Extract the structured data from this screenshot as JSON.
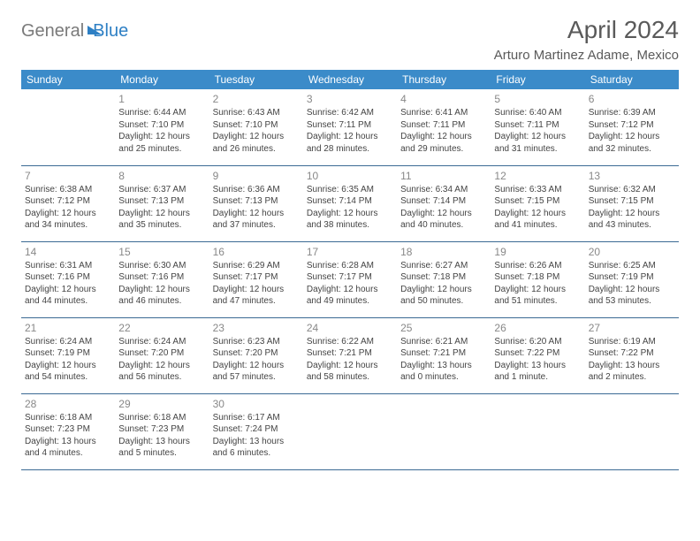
{
  "brand": {
    "word1": "General",
    "word2": "Blue"
  },
  "title": "April 2024",
  "location": "Arturo Martinez Adame, Mexico",
  "colors": {
    "header_bg": "#3b8bc9",
    "header_text": "#ffffff",
    "cell_border": "#3b6a94",
    "daynum": "#888888",
    "body_text": "#444444",
    "logo_gray": "#7a7a7a",
    "logo_blue": "#2d7fc4"
  },
  "weekdays": [
    "Sunday",
    "Monday",
    "Tuesday",
    "Wednesday",
    "Thursday",
    "Friday",
    "Saturday"
  ],
  "weeks": [
    [
      null,
      {
        "day": "1",
        "sunrise": "Sunrise: 6:44 AM",
        "sunset": "Sunset: 7:10 PM",
        "dl1": "Daylight: 12 hours",
        "dl2": "and 25 minutes."
      },
      {
        "day": "2",
        "sunrise": "Sunrise: 6:43 AM",
        "sunset": "Sunset: 7:10 PM",
        "dl1": "Daylight: 12 hours",
        "dl2": "and 26 minutes."
      },
      {
        "day": "3",
        "sunrise": "Sunrise: 6:42 AM",
        "sunset": "Sunset: 7:11 PM",
        "dl1": "Daylight: 12 hours",
        "dl2": "and 28 minutes."
      },
      {
        "day": "4",
        "sunrise": "Sunrise: 6:41 AM",
        "sunset": "Sunset: 7:11 PM",
        "dl1": "Daylight: 12 hours",
        "dl2": "and 29 minutes."
      },
      {
        "day": "5",
        "sunrise": "Sunrise: 6:40 AM",
        "sunset": "Sunset: 7:11 PM",
        "dl1": "Daylight: 12 hours",
        "dl2": "and 31 minutes."
      },
      {
        "day": "6",
        "sunrise": "Sunrise: 6:39 AM",
        "sunset": "Sunset: 7:12 PM",
        "dl1": "Daylight: 12 hours",
        "dl2": "and 32 minutes."
      }
    ],
    [
      {
        "day": "7",
        "sunrise": "Sunrise: 6:38 AM",
        "sunset": "Sunset: 7:12 PM",
        "dl1": "Daylight: 12 hours",
        "dl2": "and 34 minutes."
      },
      {
        "day": "8",
        "sunrise": "Sunrise: 6:37 AM",
        "sunset": "Sunset: 7:13 PM",
        "dl1": "Daylight: 12 hours",
        "dl2": "and 35 minutes."
      },
      {
        "day": "9",
        "sunrise": "Sunrise: 6:36 AM",
        "sunset": "Sunset: 7:13 PM",
        "dl1": "Daylight: 12 hours",
        "dl2": "and 37 minutes."
      },
      {
        "day": "10",
        "sunrise": "Sunrise: 6:35 AM",
        "sunset": "Sunset: 7:14 PM",
        "dl1": "Daylight: 12 hours",
        "dl2": "and 38 minutes."
      },
      {
        "day": "11",
        "sunrise": "Sunrise: 6:34 AM",
        "sunset": "Sunset: 7:14 PM",
        "dl1": "Daylight: 12 hours",
        "dl2": "and 40 minutes."
      },
      {
        "day": "12",
        "sunrise": "Sunrise: 6:33 AM",
        "sunset": "Sunset: 7:15 PM",
        "dl1": "Daylight: 12 hours",
        "dl2": "and 41 minutes."
      },
      {
        "day": "13",
        "sunrise": "Sunrise: 6:32 AM",
        "sunset": "Sunset: 7:15 PM",
        "dl1": "Daylight: 12 hours",
        "dl2": "and 43 minutes."
      }
    ],
    [
      {
        "day": "14",
        "sunrise": "Sunrise: 6:31 AM",
        "sunset": "Sunset: 7:16 PM",
        "dl1": "Daylight: 12 hours",
        "dl2": "and 44 minutes."
      },
      {
        "day": "15",
        "sunrise": "Sunrise: 6:30 AM",
        "sunset": "Sunset: 7:16 PM",
        "dl1": "Daylight: 12 hours",
        "dl2": "and 46 minutes."
      },
      {
        "day": "16",
        "sunrise": "Sunrise: 6:29 AM",
        "sunset": "Sunset: 7:17 PM",
        "dl1": "Daylight: 12 hours",
        "dl2": "and 47 minutes."
      },
      {
        "day": "17",
        "sunrise": "Sunrise: 6:28 AM",
        "sunset": "Sunset: 7:17 PM",
        "dl1": "Daylight: 12 hours",
        "dl2": "and 49 minutes."
      },
      {
        "day": "18",
        "sunrise": "Sunrise: 6:27 AM",
        "sunset": "Sunset: 7:18 PM",
        "dl1": "Daylight: 12 hours",
        "dl2": "and 50 minutes."
      },
      {
        "day": "19",
        "sunrise": "Sunrise: 6:26 AM",
        "sunset": "Sunset: 7:18 PM",
        "dl1": "Daylight: 12 hours",
        "dl2": "and 51 minutes."
      },
      {
        "day": "20",
        "sunrise": "Sunrise: 6:25 AM",
        "sunset": "Sunset: 7:19 PM",
        "dl1": "Daylight: 12 hours",
        "dl2": "and 53 minutes."
      }
    ],
    [
      {
        "day": "21",
        "sunrise": "Sunrise: 6:24 AM",
        "sunset": "Sunset: 7:19 PM",
        "dl1": "Daylight: 12 hours",
        "dl2": "and 54 minutes."
      },
      {
        "day": "22",
        "sunrise": "Sunrise: 6:24 AM",
        "sunset": "Sunset: 7:20 PM",
        "dl1": "Daylight: 12 hours",
        "dl2": "and 56 minutes."
      },
      {
        "day": "23",
        "sunrise": "Sunrise: 6:23 AM",
        "sunset": "Sunset: 7:20 PM",
        "dl1": "Daylight: 12 hours",
        "dl2": "and 57 minutes."
      },
      {
        "day": "24",
        "sunrise": "Sunrise: 6:22 AM",
        "sunset": "Sunset: 7:21 PM",
        "dl1": "Daylight: 12 hours",
        "dl2": "and 58 minutes."
      },
      {
        "day": "25",
        "sunrise": "Sunrise: 6:21 AM",
        "sunset": "Sunset: 7:21 PM",
        "dl1": "Daylight: 13 hours",
        "dl2": "and 0 minutes."
      },
      {
        "day": "26",
        "sunrise": "Sunrise: 6:20 AM",
        "sunset": "Sunset: 7:22 PM",
        "dl1": "Daylight: 13 hours",
        "dl2": "and 1 minute."
      },
      {
        "day": "27",
        "sunrise": "Sunrise: 6:19 AM",
        "sunset": "Sunset: 7:22 PM",
        "dl1": "Daylight: 13 hours",
        "dl2": "and 2 minutes."
      }
    ],
    [
      {
        "day": "28",
        "sunrise": "Sunrise: 6:18 AM",
        "sunset": "Sunset: 7:23 PM",
        "dl1": "Daylight: 13 hours",
        "dl2": "and 4 minutes."
      },
      {
        "day": "29",
        "sunrise": "Sunrise: 6:18 AM",
        "sunset": "Sunset: 7:23 PM",
        "dl1": "Daylight: 13 hours",
        "dl2": "and 5 minutes."
      },
      {
        "day": "30",
        "sunrise": "Sunrise: 6:17 AM",
        "sunset": "Sunset: 7:24 PM",
        "dl1": "Daylight: 13 hours",
        "dl2": "and 6 minutes."
      },
      null,
      null,
      null,
      null
    ]
  ]
}
